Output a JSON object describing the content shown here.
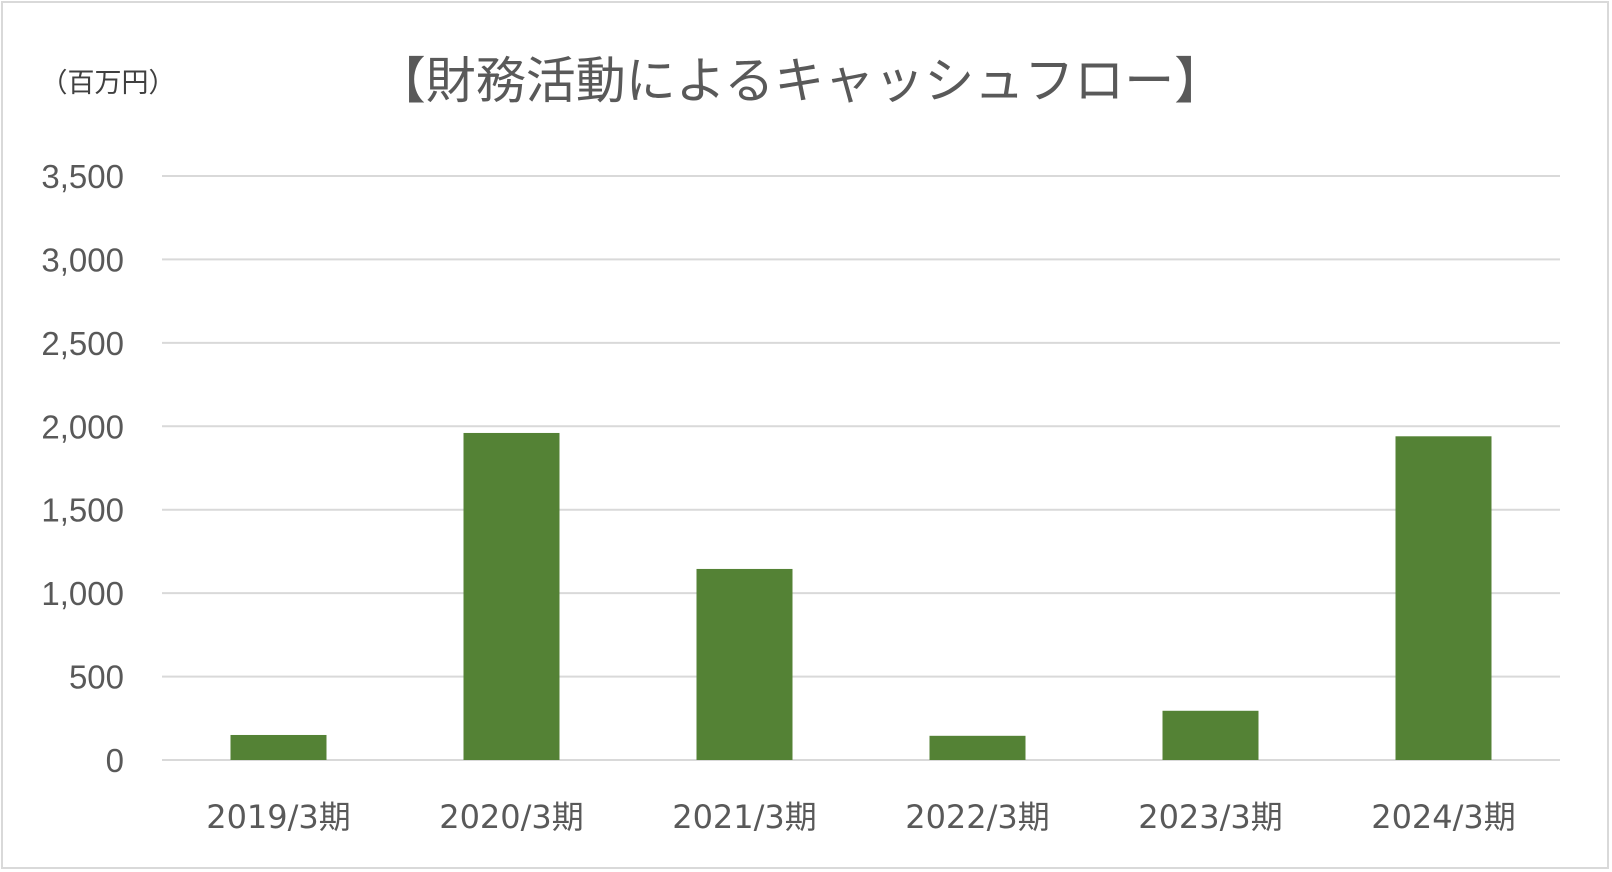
{
  "unit_label": "（百万円）",
  "chart_data": {
    "type": "bar",
    "title": "【財務活動によるキャッシュフロー】",
    "xlabel": "",
    "ylabel": "",
    "categories": [
      "2019/3期",
      "2020/3期",
      "2021/3期",
      "2022/3期",
      "2023/3期",
      "2024/3期"
    ],
    "values": [
      150,
      1960,
      1145,
      145,
      295,
      1940
    ],
    "ylim": [
      0,
      3500
    ],
    "yticks": [
      0,
      500,
      1000,
      1500,
      2000,
      2500,
      3000,
      3500
    ],
    "ytick_labels": [
      "0",
      "500",
      "1,000",
      "1,500",
      "2,000",
      "2,500",
      "3,000",
      "3,500"
    ],
    "grid": true,
    "legend": "none",
    "bar_color": "#548235",
    "grid_color": "#d9d9d9"
  }
}
